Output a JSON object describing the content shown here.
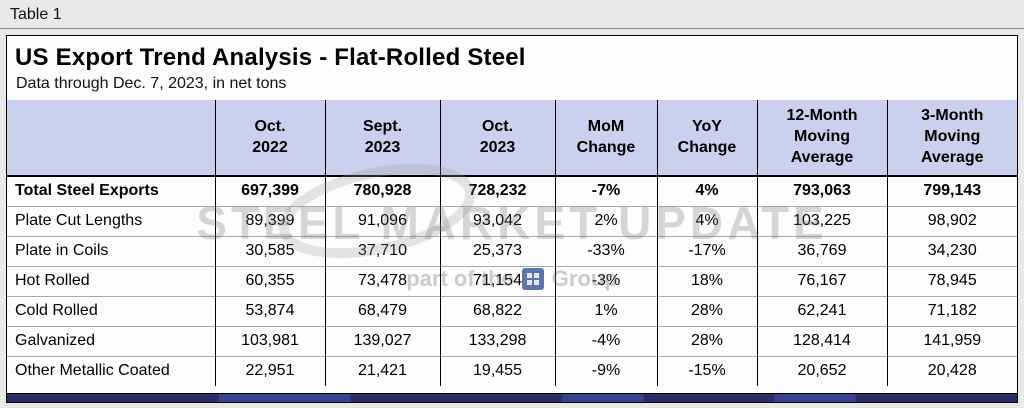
{
  "page": {
    "label": "Table 1",
    "title": "US Export Trend Analysis - Flat-Rolled Steel",
    "subtitle": "Data through Dec. 7, 2023, in net tons"
  },
  "watermark": {
    "line1": "STEEL MARKET UPDATE",
    "line2_prefix": "part of the",
    "line2_suffix": "Group"
  },
  "chart_data": {
    "type": "table",
    "title": "US Export Trend Analysis - Flat-Rolled Steel",
    "units": "net tons",
    "columns": [
      "",
      "Oct.\n2022",
      "Sept.\n2023",
      "Oct.\n2023",
      "MoM\nChange",
      "YoY\nChange",
      "12-Month\nMoving\nAverage",
      "3-Month\nMoving\nAverage"
    ],
    "rows": [
      {
        "bold": true,
        "cells": [
          "Total Steel Exports",
          "697,399",
          "780,928",
          "728,232",
          "-7%",
          "4%",
          "793,063",
          "799,143"
        ]
      },
      {
        "bold": false,
        "cells": [
          "Plate Cut Lengths",
          "89,399",
          "91,096",
          "93,042",
          "2%",
          "4%",
          "103,225",
          "98,902"
        ]
      },
      {
        "bold": false,
        "cells": [
          "Plate in Coils",
          "30,585",
          "37,710",
          "25,373",
          "-33%",
          "-17%",
          "36,769",
          "34,230"
        ]
      },
      {
        "bold": false,
        "cells": [
          "Hot Rolled",
          "60,355",
          "73,478",
          "71,154",
          "-3%",
          "18%",
          "76,167",
          "78,945"
        ]
      },
      {
        "bold": false,
        "cells": [
          "Cold Rolled",
          "53,874",
          "68,479",
          "68,822",
          "1%",
          "28%",
          "62,241",
          "71,182"
        ]
      },
      {
        "bold": false,
        "cells": [
          "Galvanized",
          "103,981",
          "139,027",
          "133,298",
          "-4%",
          "28%",
          "128,414",
          "141,959"
        ]
      },
      {
        "bold": false,
        "cells": [
          "Other Metallic Coated",
          "22,951",
          "21,421",
          "19,455",
          "-9%",
          "-15%",
          "20,652",
          "20,428"
        ]
      }
    ]
  }
}
